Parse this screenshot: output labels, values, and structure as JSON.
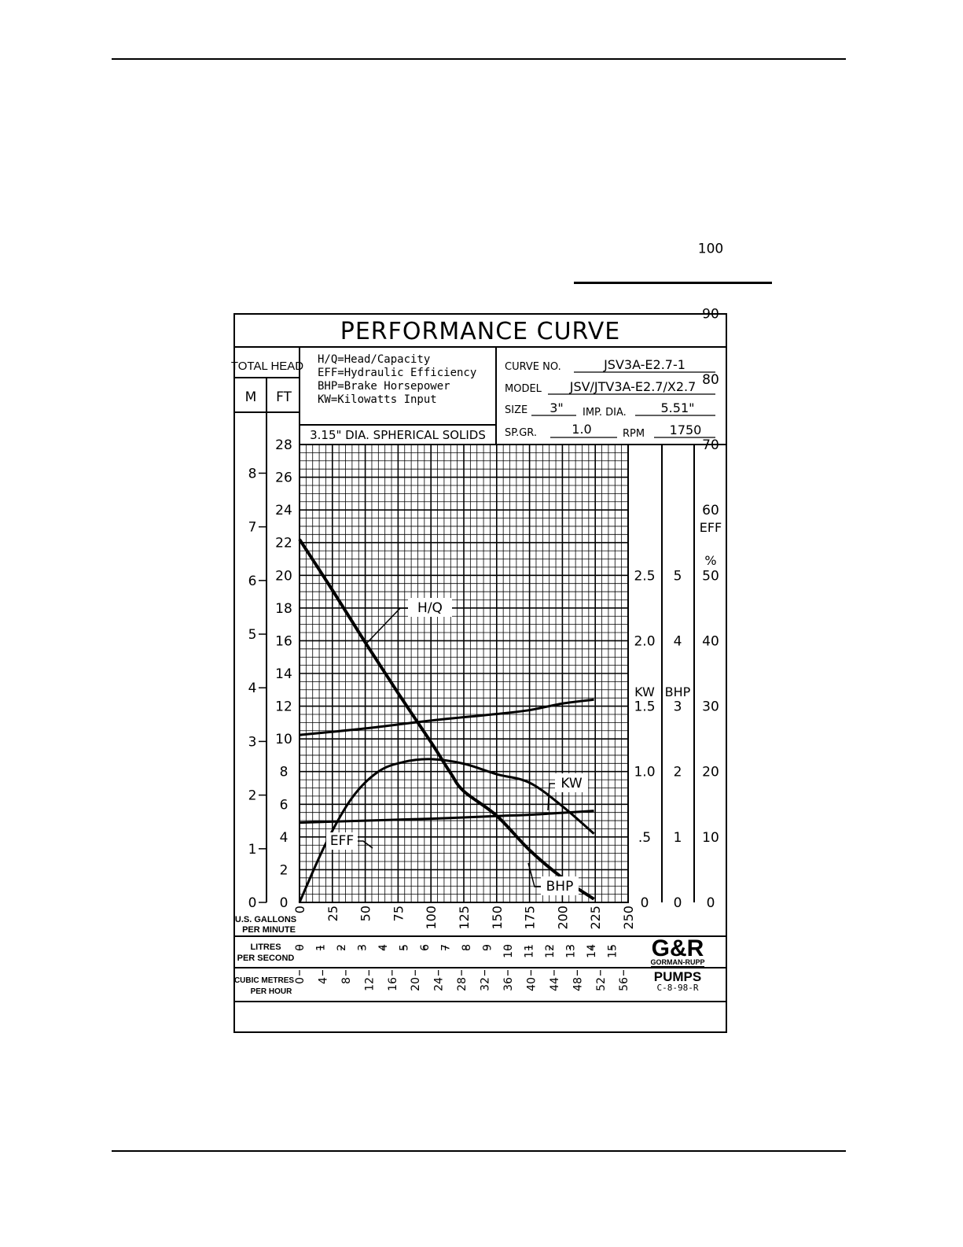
{
  "header": {
    "title": "PERFORMANCE CURVE",
    "total_head_label": "TOTAL HEAD",
    "m_label": "M",
    "ft_label": "FT"
  },
  "legend": {
    "lines": [
      "H/Q=Head/Capacity",
      "EFF=Hydraulic Efficiency",
      "BHP=Brake Horsepower",
      "KW=Kilowatts Input"
    ]
  },
  "solids": "3.15\" DIA. SPHERICAL SOLIDS",
  "info": {
    "curve_no_label": "CURVE NO.",
    "curve_no": "JSV3A-E2.7-1",
    "model_label": "MODEL",
    "model": "JSV/JTV3A-E2.7/X2.7",
    "size_label": "SIZE",
    "size": "3\"",
    "imp_dia_label": "IMP. DIA.",
    "imp_dia": "5.51\"",
    "sp_gr_label": "SP.GR.",
    "sp_gr": "1.0",
    "rpm_label": "RPM",
    "rpm": "1750"
  },
  "right_scales": {
    "kw_label": "KW",
    "bhp_label": "BHP",
    "eff_label": "EFF",
    "pct_label": "%"
  },
  "axes": {
    "gpm_label": [
      "U.S. GALLONS",
      "PER MINUTE"
    ],
    "lps_label": [
      "LITRES",
      "PER SECOND"
    ],
    "cmh_label": [
      "CUBIC METRES",
      "PER HOUR"
    ]
  },
  "logo": {
    "mark": "G&R",
    "name": "GORMAN-RUPP",
    "pumps": "PUMPS",
    "code": "C-8-98-R"
  },
  "chart_data": {
    "type": "line",
    "title": "PERFORMANCE CURVE",
    "x_label": "U.S. GALLONS PER MINUTE",
    "xlim": [
      0,
      250
    ],
    "x_ticks": [
      0,
      25,
      50,
      75,
      100,
      125,
      150,
      175,
      200,
      225,
      250
    ],
    "ft_lim": [
      0,
      28
    ],
    "ft_ticks": [
      0,
      2,
      4,
      6,
      8,
      10,
      12,
      14,
      16,
      18,
      20,
      22,
      24,
      26,
      28
    ],
    "m_ticks": [
      0,
      1,
      2,
      3,
      4,
      5,
      6,
      7,
      8
    ],
    "lps_ticks": [
      0,
      1,
      2,
      3,
      4,
      5,
      6,
      7,
      8,
      9,
      10,
      11,
      12,
      13,
      14,
      15
    ],
    "cmh_ticks": [
      0,
      4,
      8,
      12,
      16,
      20,
      24,
      28,
      32,
      36,
      40,
      44,
      48,
      52,
      56
    ],
    "kw_ticks": [
      "0",
      ".5",
      "1.0",
      "1.5",
      "2.0",
      "2.5"
    ],
    "bhp_ticks": [
      "0",
      "1",
      "2",
      "3",
      "4",
      "5"
    ],
    "eff_ticks": [
      "0",
      "10",
      "20",
      "30",
      "40",
      "50",
      "60",
      "70",
      "80",
      "90",
      "100"
    ],
    "grid": true,
    "series": [
      {
        "name": "H/Q",
        "unit": "ft",
        "points": [
          [
            0,
            22.2
          ],
          [
            25,
            19.1
          ],
          [
            50,
            15.9
          ],
          [
            75,
            12.8
          ],
          [
            100,
            9.8
          ],
          [
            115,
            7.9
          ],
          [
            125,
            6.8
          ],
          [
            150,
            5.3
          ],
          [
            175,
            3.2
          ],
          [
            200,
            1.5
          ],
          [
            224,
            0.2
          ]
        ]
      },
      {
        "name": "KW",
        "unit": "kw",
        "points": [
          [
            0,
            1.28
          ],
          [
            50,
            1.33
          ],
          [
            100,
            1.39
          ],
          [
            150,
            1.44
          ],
          [
            175,
            1.47
          ],
          [
            200,
            1.52
          ],
          [
            224,
            1.55
          ]
        ]
      },
      {
        "name": "EFF",
        "unit": "%",
        "points": [
          [
            0,
            0
          ],
          [
            20,
            9
          ],
          [
            40,
            16
          ],
          [
            60,
            20
          ],
          [
            80,
            21.5
          ],
          [
            100,
            21.9
          ],
          [
            125,
            21.2
          ],
          [
            150,
            19.6
          ],
          [
            175,
            18.3
          ],
          [
            200,
            14.7
          ],
          [
            224,
            10.5
          ]
        ]
      },
      {
        "name": "BHP",
        "unit": "hp",
        "points": [
          [
            0,
            1.22
          ],
          [
            50,
            1.25
          ],
          [
            100,
            1.28
          ],
          [
            150,
            1.32
          ],
          [
            175,
            1.34
          ],
          [
            200,
            1.37
          ],
          [
            224,
            1.4
          ]
        ]
      }
    ]
  }
}
